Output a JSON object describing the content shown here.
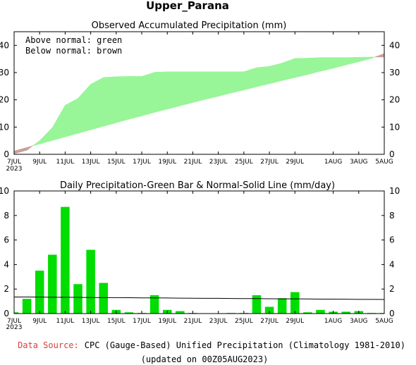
{
  "page_title": "Upper_Parana",
  "footer": {
    "source_label": "Data Source:",
    "source_text": "CPC (Gauge-Based) Unified Precipitation (Climatology 1981-2010)",
    "updated": "(updated on 00Z05AUG2023)"
  },
  "colors": {
    "above": "#98f598",
    "below": "#c8a09a",
    "bar": "#00dd00",
    "source": "#d84040"
  },
  "chart_data": [
    {
      "type": "area",
      "title": "Observed Accumulated Precipitation (mm)",
      "legend": [
        "Above normal: green",
        "Below normal: brown"
      ],
      "legend_position": "top-left",
      "x_tick_labels": [
        "7JUL",
        "9JUL",
        "11JUL",
        "13JUL",
        "15JUL",
        "17JUL",
        "19JUL",
        "21JUL",
        "23JUL",
        "25JUL",
        "27JUL",
        "29JUL",
        "1AUG",
        "3AUG",
        "5AUG"
      ],
      "x_year_label": "2023",
      "ylim": [
        0,
        45
      ],
      "y_ticks": [
        0,
        10,
        20,
        30,
        40
      ],
      "days": [
        "7JUL",
        "8JUL",
        "9JUL",
        "10JUL",
        "11JUL",
        "12JUL",
        "13JUL",
        "14JUL",
        "15JUL",
        "16JUL",
        "17JUL",
        "18JUL",
        "19JUL",
        "20JUL",
        "21JUL",
        "22JUL",
        "23JUL",
        "24JUL",
        "25JUL",
        "26JUL",
        "27JUL",
        "28JUL",
        "29JUL",
        "30JUL",
        "31JUL",
        "1AUG",
        "2AUG",
        "3AUG",
        "4AUG",
        "5AUG"
      ],
      "series": [
        {
          "name": "Observed",
          "values": [
            0.2,
            1.5,
            5.0,
            9.8,
            18.0,
            20.5,
            25.7,
            28.2,
            28.5,
            28.6,
            28.6,
            30.1,
            30.3,
            30.3,
            30.3,
            30.3,
            30.3,
            30.3,
            30.3,
            31.8,
            32.3,
            33.5,
            35.2,
            35.3,
            35.5,
            35.5,
            35.5,
            35.6,
            35.7,
            35.7
          ]
        },
        {
          "name": "Normal",
          "values": [
            1.2,
            2.5,
            3.8,
            5.1,
            6.4,
            7.7,
            9.0,
            10.3,
            11.6,
            12.9,
            14.1,
            15.4,
            16.6,
            17.8,
            19.0,
            20.2,
            21.3,
            22.5,
            23.6,
            24.8,
            25.9,
            27.1,
            28.2,
            29.3,
            30.5,
            31.6,
            32.8,
            34.0,
            35.2,
            37.0
          ]
        }
      ]
    },
    {
      "type": "bar",
      "title": "Daily Precipitation-Green Bar & Normal-Solid Line (mm/day)",
      "x_tick_labels": [
        "7JUL",
        "9JUL",
        "11JUL",
        "13JUL",
        "15JUL",
        "17JUL",
        "19JUL",
        "21JUL",
        "23JUL",
        "25JUL",
        "27JUL",
        "29JUL",
        "1AUG",
        "3AUG",
        "5AUG"
      ],
      "x_year_label": "2023",
      "ylim": [
        0,
        10
      ],
      "y_ticks": [
        0,
        2,
        4,
        6,
        8,
        10
      ],
      "categories": [
        "7JUL",
        "8JUL",
        "9JUL",
        "10JUL",
        "11JUL",
        "12JUL",
        "13JUL",
        "14JUL",
        "15JUL",
        "16JUL",
        "17JUL",
        "18JUL",
        "19JUL",
        "20JUL",
        "21JUL",
        "22JUL",
        "23JUL",
        "24JUL",
        "25JUL",
        "26JUL",
        "27JUL",
        "28JUL",
        "29JUL",
        "30JUL",
        "31JUL",
        "1AUG",
        "2AUG",
        "3AUG",
        "4AUG",
        "5AUG"
      ],
      "series": [
        {
          "name": "Daily Precipitation",
          "values": [
            0.1,
            1.2,
            3.5,
            4.8,
            8.7,
            2.4,
            5.2,
            2.5,
            0.3,
            0.1,
            0.05,
            1.5,
            0.3,
            0.2,
            0.05,
            0.0,
            0.0,
            0.05,
            0.05,
            1.5,
            0.55,
            1.25,
            1.75,
            0.1,
            0.3,
            0.15,
            0.15,
            0.2,
            0.05,
            0.05
          ]
        },
        {
          "name": "Normal",
          "values": [
            1.35,
            1.35,
            1.34,
            1.33,
            1.33,
            1.32,
            1.31,
            1.3,
            1.3,
            1.29,
            1.28,
            1.28,
            1.27,
            1.26,
            1.25,
            1.24,
            1.24,
            1.23,
            1.22,
            1.22,
            1.21,
            1.2,
            1.2,
            1.19,
            1.18,
            1.18,
            1.17,
            1.16,
            1.16,
            1.15
          ]
        }
      ]
    }
  ]
}
